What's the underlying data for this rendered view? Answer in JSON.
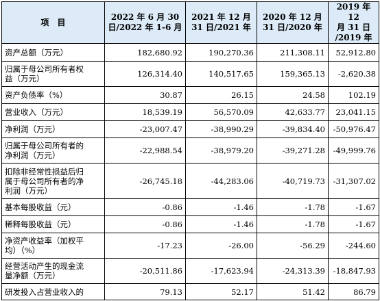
{
  "table": {
    "headers": [
      [
        "项　目"
      ],
      [
        "2022 年 6 月 30",
        "日/2022 年 1-6 月"
      ],
      [
        "2021 年 12 月",
        "31 日/2021 年"
      ],
      [
        "2020 年 12 月",
        "31 日/2020 年"
      ],
      [
        "2019 年 12",
        "月 31 日",
        "/2019 年"
      ]
    ],
    "rows": [
      {
        "label": [
          "资产总额（万元）"
        ],
        "values": [
          "182,680.92",
          "190,270.36",
          "211,308.11",
          "52,912.80"
        ]
      },
      {
        "label": [
          "归属于母公司所有者权",
          "益（万元）"
        ],
        "values": [
          "126,314.40",
          "140,517.65",
          "159,365.13",
          "-2,620.38"
        ]
      },
      {
        "label": [
          "资产负债率（%）"
        ],
        "values": [
          "30.87",
          "26.15",
          "24.58",
          "102.19"
        ]
      },
      {
        "label": [
          "营业收入（万元）"
        ],
        "values": [
          "18,539.19",
          "56,570.09",
          "42,633.77",
          "23,041.15"
        ]
      },
      {
        "label": [
          "净利润（万元）"
        ],
        "values": [
          "-23,007.47",
          "-38,990.29",
          "-39,834.40",
          "-50,976.47"
        ]
      },
      {
        "label": [
          "归属于母公司所有者的",
          "净利润（万元）"
        ],
        "values": [
          "-22,988.54",
          "-38,979.20",
          "-39,271.28",
          "-49,999.76"
        ]
      },
      {
        "label": [
          "扣除非经常性损益后归",
          "属于母公司所有者的净",
          "利润（万元）"
        ],
        "values": [
          "-26,745.18",
          "-44,283.06",
          "-40,719.73",
          "-31,307.02"
        ]
      },
      {
        "label": [
          "基本每股收益（元）"
        ],
        "values": [
          "-0.86",
          "-1.46",
          "-1.78",
          "-1.67"
        ]
      },
      {
        "label": [
          "稀释每股收益（元）"
        ],
        "values": [
          "-0.86",
          "-1.46",
          "-1.78",
          "-1.67"
        ]
      },
      {
        "label": [
          "净资产收益率（加权平",
          "均）（%）"
        ],
        "values": [
          "-17.23",
          "-26.00",
          "-56.29",
          "-244.60"
        ]
      },
      {
        "label": [
          "经营活动产生的现金流",
          "量净额（万元）"
        ],
        "values": [
          "-20,511.86",
          "-17,623.94",
          "-24,313.39",
          "-18,847.93"
        ]
      },
      {
        "label": [
          "研发投入占营业收入的"
        ],
        "values": [
          "79.13",
          "52.17",
          "51.42",
          "86.79"
        ]
      }
    ]
  }
}
